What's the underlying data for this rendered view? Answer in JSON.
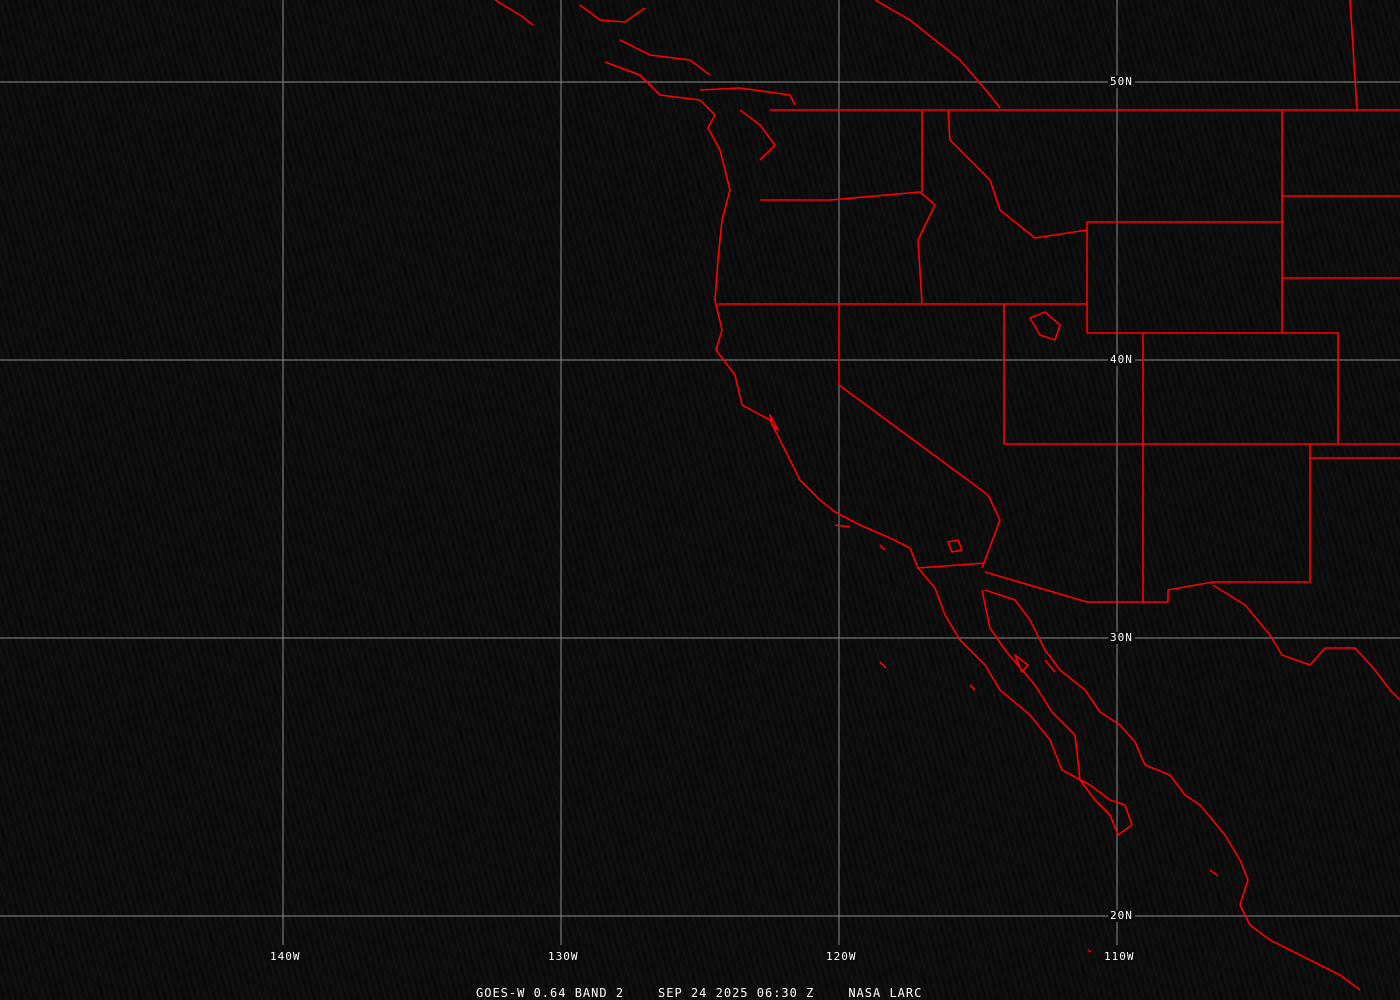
{
  "map": {
    "title_parts": {
      "satellite": "GOES-W 0.64 BAND 2",
      "datetime": "SEP 24 2025 06:30 Z",
      "source": "NASA LARC"
    },
    "latitude_labels": [
      {
        "value": 50,
        "label": "50N"
      },
      {
        "value": 40,
        "label": "40N"
      },
      {
        "value": 30,
        "label": "30N"
      },
      {
        "value": 20,
        "label": "20N"
      }
    ],
    "longitude_labels": [
      {
        "value": -140,
        "label": "140W"
      },
      {
        "value": -130,
        "label": "130W"
      },
      {
        "value": -120,
        "label": "120W"
      },
      {
        "value": -110,
        "label": "110W"
      }
    ],
    "colors": {
      "boundaries": "#ff0000",
      "grid": "#8a8a8a",
      "background": "#0b0b0b",
      "text": "#ffffff"
    }
  }
}
